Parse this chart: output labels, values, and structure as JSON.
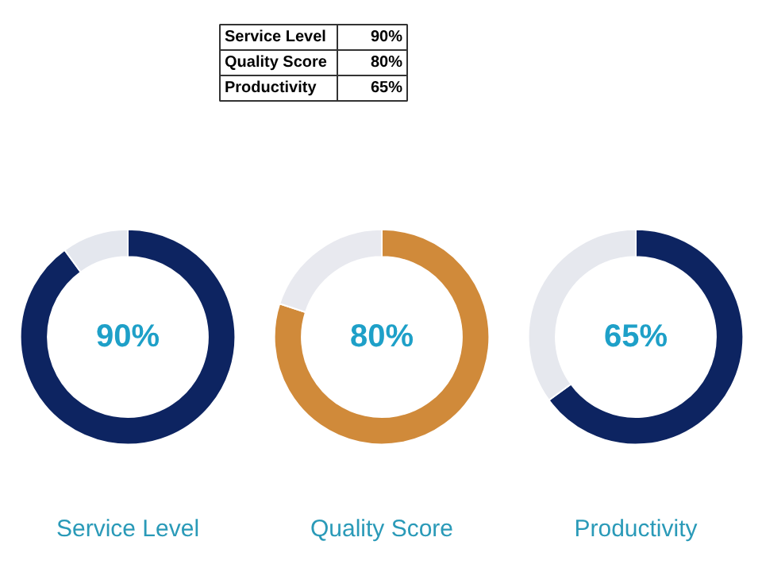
{
  "chart_data": [
    {
      "type": "other",
      "annotations": [
        "Service Level",
        "90%",
        "Quality Score",
        "80%",
        "Productivity",
        "65%"
      ]
    },
    {
      "type": "donut",
      "title": "Service Level",
      "categories": [
        null,
        null
      ],
      "values": [
        90,
        10
      ],
      "colors": [
        "#0d2461",
        "#e4e7ee"
      ],
      "value_labels": [
        "90%",
        null
      ]
    },
    {
      "type": "donut",
      "title": "Quality Score",
      "categories": [
        null,
        null
      ],
      "values": [
        80,
        20
      ],
      "colors": [
        "#d08a3a",
        "#e8e9ef"
      ],
      "value_labels": [
        "80%",
        null
      ]
    },
    {
      "type": "donut",
      "title": "Productivity",
      "categories": [
        null,
        null
      ],
      "values": [
        65,
        35
      ],
      "colors": [
        "#0d2461",
        "#e6e8ee"
      ],
      "value_labels": [
        "65%",
        null
      ]
    }
  ]
}
